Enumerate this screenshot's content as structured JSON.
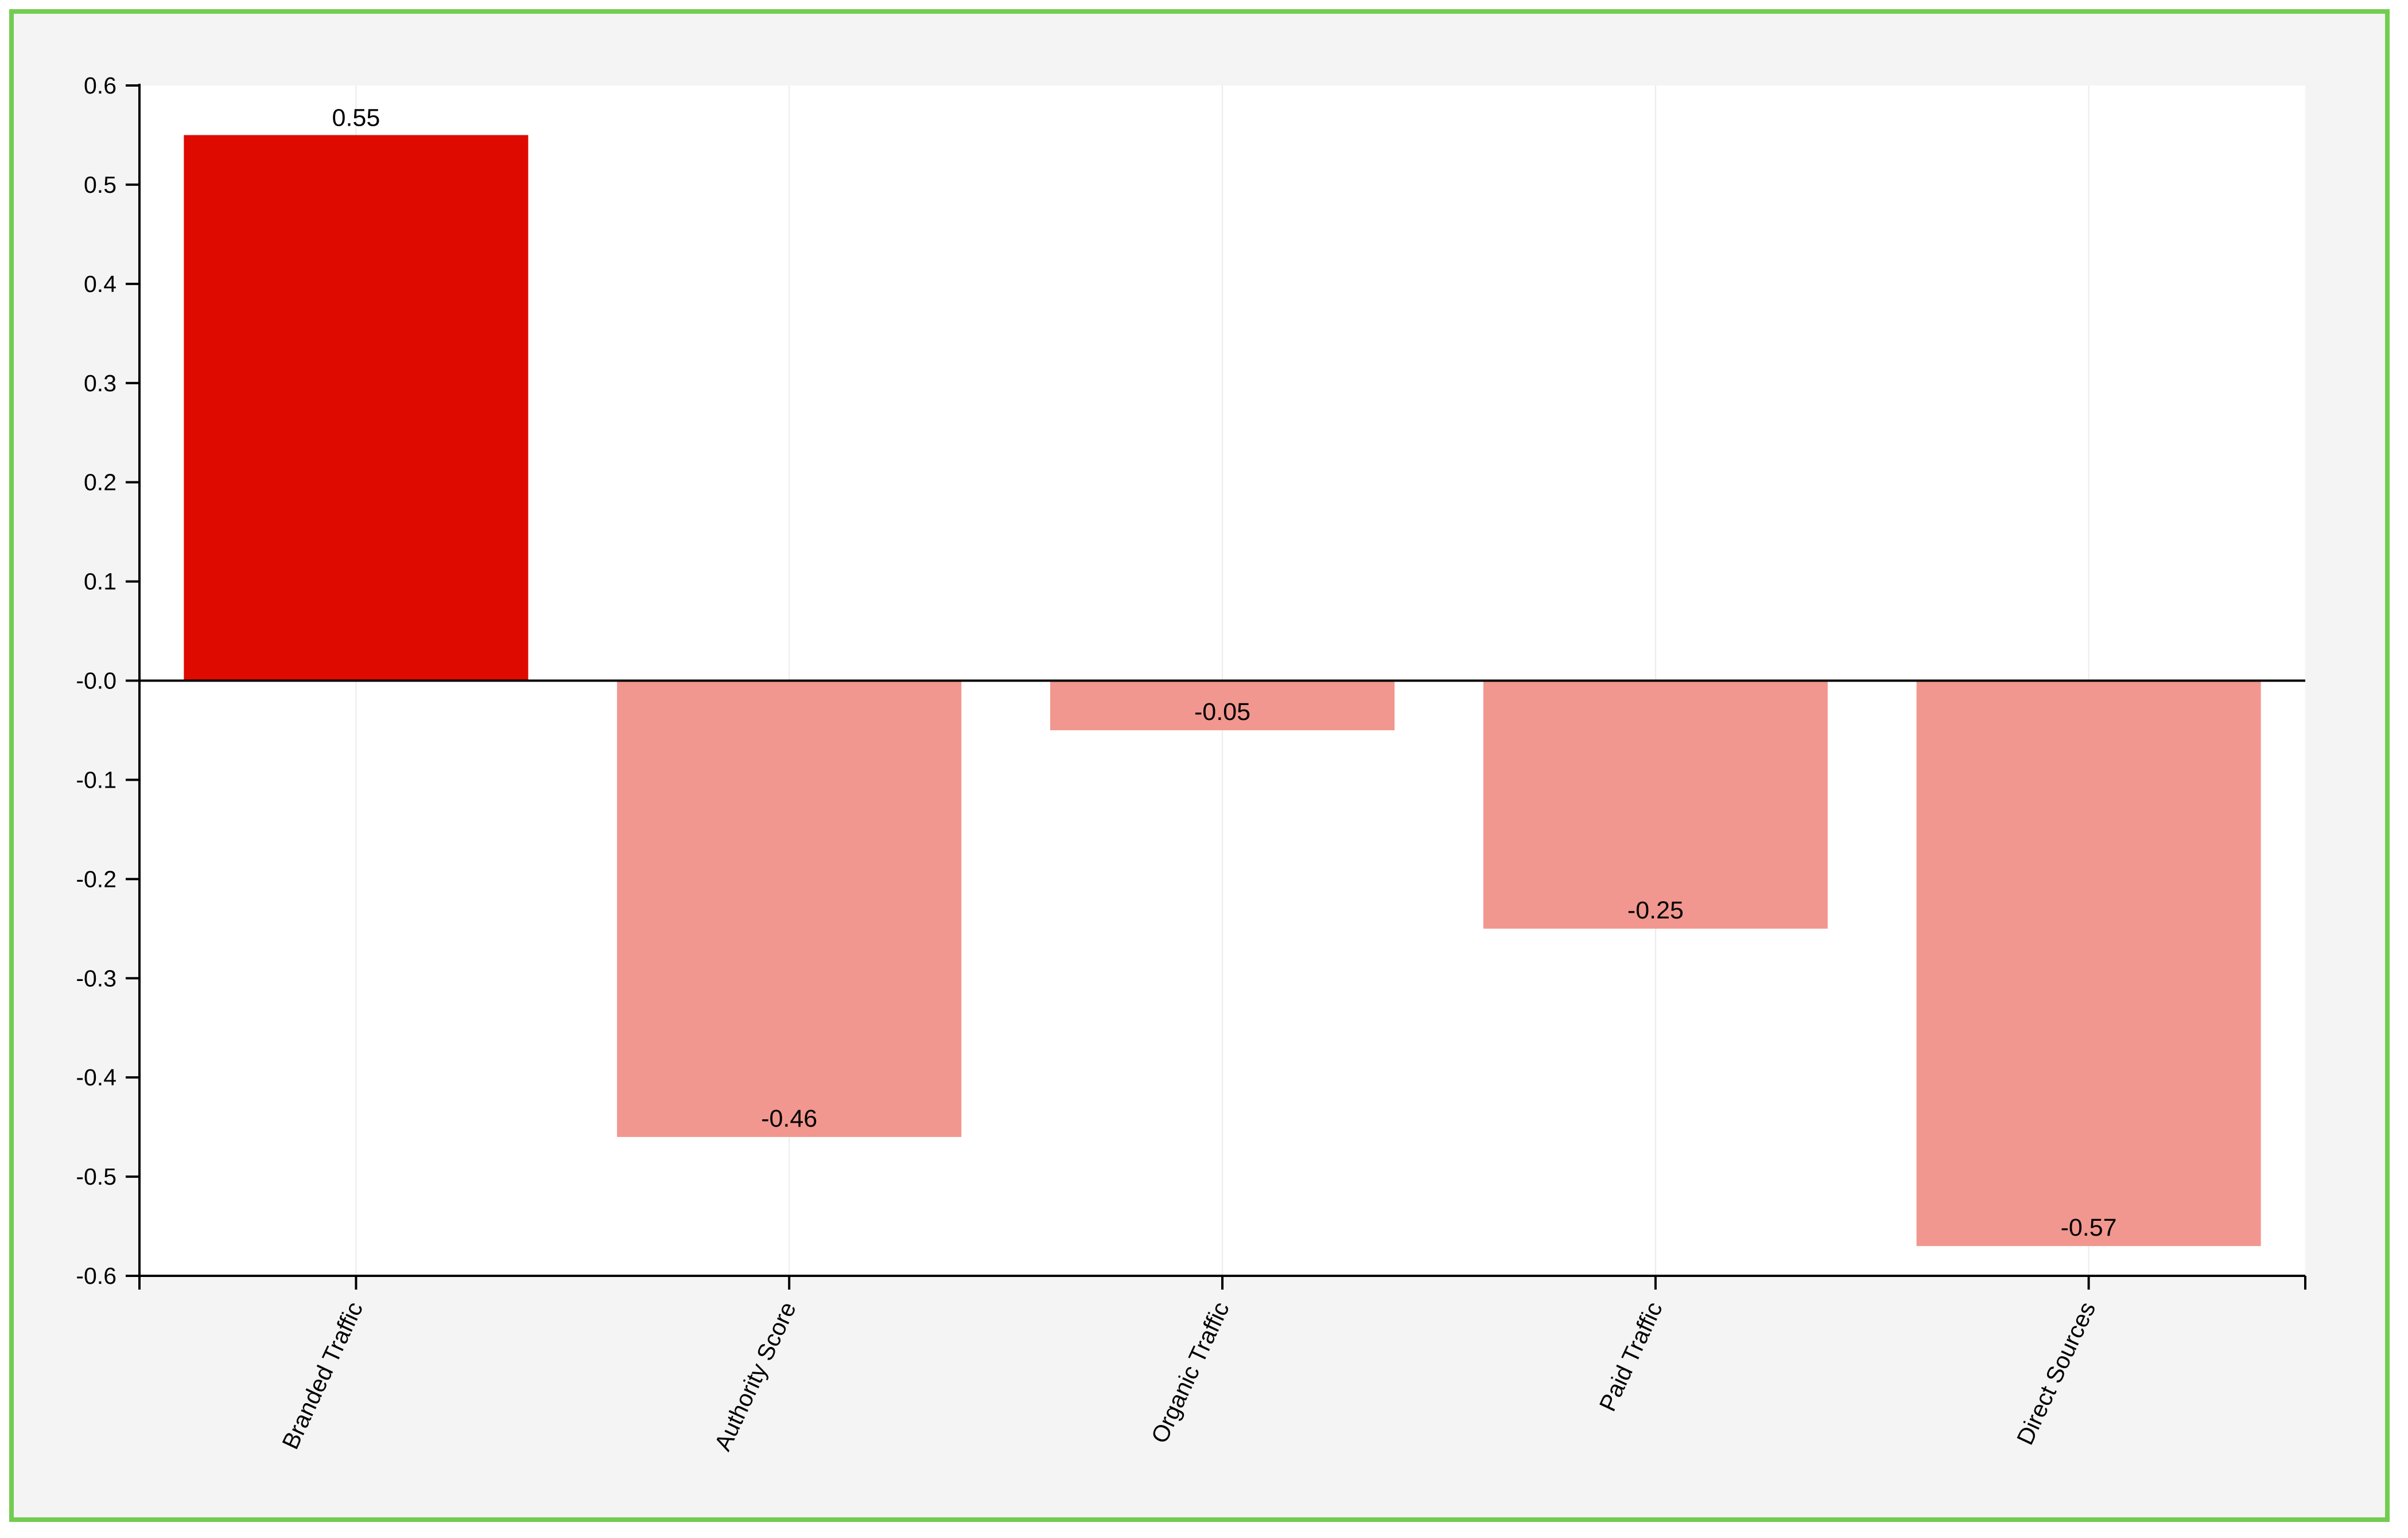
{
  "chart_data": {
    "type": "bar",
    "title": "",
    "xlabel": "",
    "ylabel": "",
    "categories": [
      "Branded Traffic",
      "Authority Score",
      "Organic Traffic",
      "Paid Traffic",
      "Direct Sources"
    ],
    "values": [
      0.55,
      -0.46,
      -0.05,
      -0.25,
      -0.57
    ],
    "value_labels": [
      "0.55",
      "-0.46",
      "-0.05",
      "-0.25",
      "-0.57"
    ],
    "ylim": [
      -0.6,
      0.6
    ],
    "yticks": [
      0.6,
      0.5,
      0.4,
      0.3,
      0.2,
      0.1,
      0.0,
      -0.1,
      -0.2,
      -0.3,
      -0.4,
      -0.5,
      -0.6
    ],
    "ytick_labels": [
      "0.6",
      "0.5",
      "0.4",
      "0.3",
      "0.2",
      "0.1",
      "-0.0",
      "-0.1",
      "-0.2",
      "-0.3",
      "-0.4",
      "-0.5",
      "-0.6"
    ],
    "grid": "vertical",
    "legend": "none",
    "colors": {
      "positive_bar": "#de0a00",
      "negative_bar": "#f1978f",
      "frame_border": "#72cc50",
      "frame_background": "#f4f4f4",
      "plot_background": "#ffffff",
      "gridline": "#ebebeb",
      "axis": "#000000"
    }
  }
}
